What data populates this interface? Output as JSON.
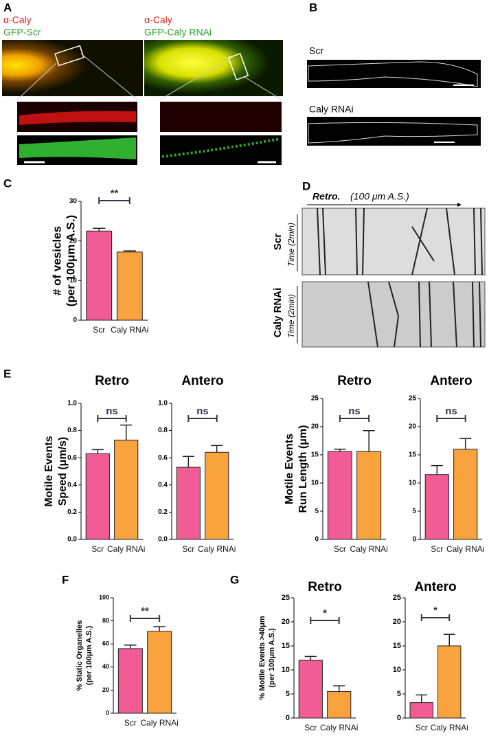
{
  "panels": {
    "a": {
      "letter": "A",
      "left_stain": "α-Caly",
      "left_gfp": "GFP-Scr",
      "right_stain": "α-Caly",
      "right_gfp": "GFP-Caly RNAi"
    },
    "b": {
      "letter": "B",
      "top_label": "Scr",
      "bottom_label": "Caly RNAi"
    },
    "d": {
      "letter": "D",
      "direction": "Retro.",
      "scale": "(100 μm A.S.)",
      "top_label": "Scr",
      "bottom_label": "Caly RNAi",
      "top_time": "Time (2min)",
      "bottom_time": "Time (2min)"
    }
  },
  "chart_data": [
    {
      "type": "bar",
      "panel": "C",
      "ylabel": [
        "# of vesicles",
        "(per 100μm A.S.)"
      ],
      "categories": [
        "Scr",
        "Caly RNAi"
      ],
      "values": [
        22.5,
        17.2
      ],
      "errors": [
        0.7,
        0.3
      ],
      "colors": [
        "#f25c95",
        "#f9a33e"
      ],
      "ylim": [
        0,
        30
      ],
      "yticks": [
        0,
        10,
        20,
        30
      ],
      "annotation": "**"
    },
    {
      "type": "bar",
      "panel": "E",
      "title": "Retro",
      "ylabel": [
        "Motile Events",
        "Speed (μm/s)"
      ],
      "categories": [
        "Scr",
        "Caly RNAi"
      ],
      "values": [
        0.63,
        0.73
      ],
      "errors": [
        0.03,
        0.11
      ],
      "colors": [
        "#f25c95",
        "#f9a33e"
      ],
      "ylim": [
        0,
        1
      ],
      "yticks": [
        {
          "value": 0,
          "label": "0.0"
        },
        0.2,
        0.4,
        0.6,
        0.8,
        {
          "value": 1,
          "label": "1.0"
        }
      ],
      "annotation": "ns"
    },
    {
      "type": "bar",
      "title": "Antero",
      "categories": [
        "Scr",
        "Caly RNAi"
      ],
      "values": [
        0.53,
        0.64
      ],
      "errors": [
        0.08,
        0.05
      ],
      "colors": [
        "#f25c95",
        "#f9a33e"
      ],
      "ylim": [
        0,
        1
      ],
      "yticks": [
        {
          "value": 0,
          "label": "0.0"
        },
        0.2,
        0.4,
        0.6,
        0.8,
        {
          "value": 1,
          "label": "1.0"
        }
      ],
      "annotation": "ns"
    },
    {
      "type": "bar",
      "title": "Retro",
      "ylabel": [
        "Motile Events",
        "Run Length (μm)"
      ],
      "categories": [
        "Scr",
        "Caly RNAi"
      ],
      "values": [
        15.6,
        15.6
      ],
      "errors": [
        0.4,
        3.7
      ],
      "colors": [
        "#f25c95",
        "#f9a33e"
      ],
      "ylim": [
        0,
        25
      ],
      "yticks": [
        0,
        5,
        10,
        15,
        20,
        25
      ],
      "annotation": "ns"
    },
    {
      "type": "bar",
      "title": "Antero",
      "categories": [
        "Scr",
        "Caly RNAi"
      ],
      "values": [
        11.5,
        16.0
      ],
      "errors": [
        1.6,
        1.9
      ],
      "colors": [
        "#f25c95",
        "#f9a33e"
      ],
      "ylim": [
        0,
        25
      ],
      "yticks": [
        0,
        5,
        10,
        15,
        20,
        25
      ],
      "annotation": "ns"
    },
    {
      "type": "bar",
      "panel": "F",
      "ylabel": [
        "% Static Organelles",
        "(per 100μm A.S.)"
      ],
      "categories": [
        "Scr",
        "Caly RNAi"
      ],
      "values": [
        56,
        71
      ],
      "errors": [
        3,
        4
      ],
      "colors": [
        "#f25c95",
        "#f9a33e"
      ],
      "ylim": [
        0,
        100
      ],
      "yticks": [
        0,
        20,
        40,
        60,
        80,
        100
      ],
      "annotation": "**"
    },
    {
      "type": "bar",
      "panel": "G",
      "title": "Retro",
      "ylabel": [
        "% Motile Events >40μm",
        "(per 100μm A.S.)"
      ],
      "categories": [
        "Scr",
        "Caly RNAi"
      ],
      "values": [
        12,
        5.5
      ],
      "errors": [
        0.8,
        1.2
      ],
      "colors": [
        "#f25c95",
        "#f9a33e"
      ],
      "ylim": [
        0,
        25
      ],
      "yticks": [
        0,
        5,
        10,
        15,
        20,
        25
      ],
      "annotation": "*"
    },
    {
      "type": "bar",
      "title": "Antero",
      "categories": [
        "Scr",
        "Caly RNAi"
      ],
      "values": [
        3.2,
        15
      ],
      "errors": [
        1.6,
        2.4
      ],
      "colors": [
        "#f25c95",
        "#f9a33e"
      ],
      "ylim": [
        0,
        25
      ],
      "yticks": [
        0,
        5,
        10,
        15,
        20,
        25
      ],
      "annotation": "*"
    }
  ]
}
